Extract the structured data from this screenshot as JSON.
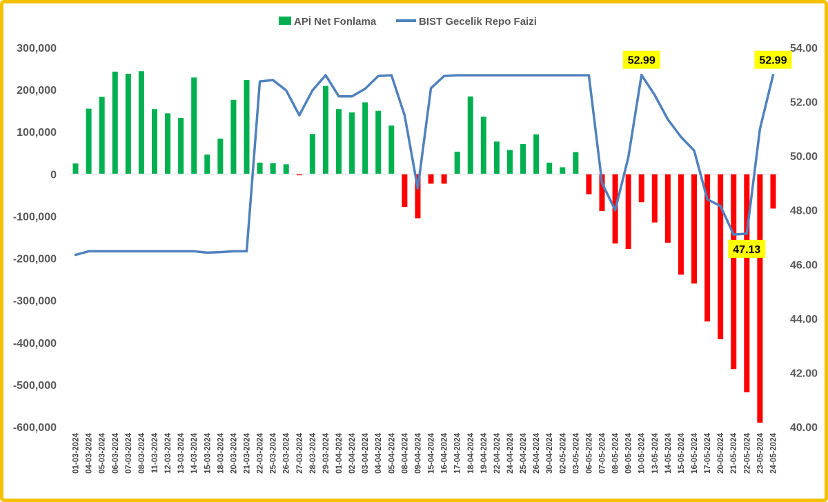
{
  "chart_data": {
    "type": "bar+line",
    "categories": [
      "01-03-2024",
      "04-03-2024",
      "05-03-2024",
      "06-03-2024",
      "07-03-2024",
      "08-03-2024",
      "11-03-2024",
      "12-03-2024",
      "13-03-2024",
      "14-03-2024",
      "15-03-2024",
      "18-03-2024",
      "20-03-2024",
      "21-03-2024",
      "22-03-2024",
      "25-03-2024",
      "26-03-2024",
      "27-03-2024",
      "28-03-2024",
      "29-03-2024",
      "01-04-2024",
      "02-04-2024",
      "03-04-2024",
      "04-04-2024",
      "05-04-2024",
      "08-04-2024",
      "09-04-2024",
      "15-04-2024",
      "16-04-2024",
      "17-04-2024",
      "18-04-2024",
      "19-04-2024",
      "22-04-2024",
      "24-04-2024",
      "25-04-2024",
      "26-04-2024",
      "30-04-2024",
      "02-05-2024",
      "03-05-2024",
      "06-05-2024",
      "07-05-2024",
      "08-05-2024",
      "09-05-2024",
      "10-05-2024",
      "13-05-2024",
      "14-05-2024",
      "15-05-2024",
      "16-05-2024",
      "17-05-2024",
      "20-05-2024",
      "21-05-2024",
      "22-05-2024",
      "23-05-2024",
      "24-05-2024"
    ],
    "series": [
      {
        "name": "APİ Net Fonlama",
        "type": "bar",
        "axis": "left",
        "values": [
          25000,
          155000,
          183000,
          243000,
          238000,
          244000,
          154000,
          144000,
          133000,
          229000,
          46000,
          84000,
          176000,
          223000,
          27000,
          26000,
          23000,
          -3000,
          95000,
          209000,
          154000,
          146000,
          170000,
          150000,
          115000,
          -78000,
          -105000,
          -23000,
          -23000,
          53000,
          184000,
          136000,
          77000,
          57000,
          71000,
          94000,
          27000,
          16000,
          52000,
          -48000,
          -88000,
          -165000,
          -178000,
          -67000,
          -115000,
          -163000,
          -239000,
          -260000,
          -350000,
          -392000,
          -463000,
          -518000,
          -590000,
          -82000
        ]
      },
      {
        "name": "BIST Gecelik Repo Faizi",
        "type": "line",
        "axis": "right",
        "values": [
          46.35,
          46.48,
          46.48,
          46.48,
          46.48,
          46.48,
          46.48,
          46.48,
          46.48,
          46.48,
          46.43,
          46.45,
          46.48,
          46.48,
          52.75,
          52.8,
          52.42,
          51.5,
          52.42,
          52.98,
          52.2,
          52.2,
          52.48,
          52.95,
          52.98,
          51.5,
          48.8,
          52.5,
          52.95,
          52.98,
          52.98,
          52.98,
          52.98,
          52.98,
          52.98,
          52.98,
          52.98,
          52.98,
          52.98,
          52.98,
          49.0,
          48.0,
          49.95,
          52.99,
          52.25,
          51.35,
          50.7,
          50.2,
          48.4,
          48.15,
          47.1,
          47.13,
          51.0,
          52.99
        ]
      }
    ],
    "colors": {
      "positive": "#00b050",
      "negative": "#ff0000",
      "line": "#4f81bd",
      "frame": "#f5c000",
      "highlight": "#ffff00"
    },
    "y_left": {
      "min": -600000,
      "max": 300000,
      "step": 100000,
      "ticks": [
        "300,000",
        "200,000",
        "100,000",
        "0",
        "-100,000",
        "-200,000",
        "-300,000",
        "-400,000",
        "-500,000",
        "-600,000"
      ]
    },
    "y_right": {
      "min": 40,
      "max": 54,
      "step": 2,
      "ticks": [
        "54.00",
        "52.00",
        "50.00",
        "48.00",
        "46.00",
        "44.00",
        "42.00",
        "40.00"
      ]
    },
    "annotations": [
      {
        "text": "52.99",
        "category": "10-05-2024",
        "series": "BIST Gecelik Repo Faizi",
        "position": "above"
      },
      {
        "text": "47.13",
        "category": "22-05-2024",
        "series": "BIST Gecelik Repo Faizi",
        "position": "below"
      },
      {
        "text": "52.99",
        "category": "24-05-2024",
        "series": "BIST Gecelik Repo Faizi",
        "position": "above"
      }
    ],
    "legend": {
      "position": "top",
      "items": [
        "APİ Net Fonlama",
        "BIST Gecelik Repo Faizi"
      ]
    },
    "grid": false,
    "title": ""
  }
}
